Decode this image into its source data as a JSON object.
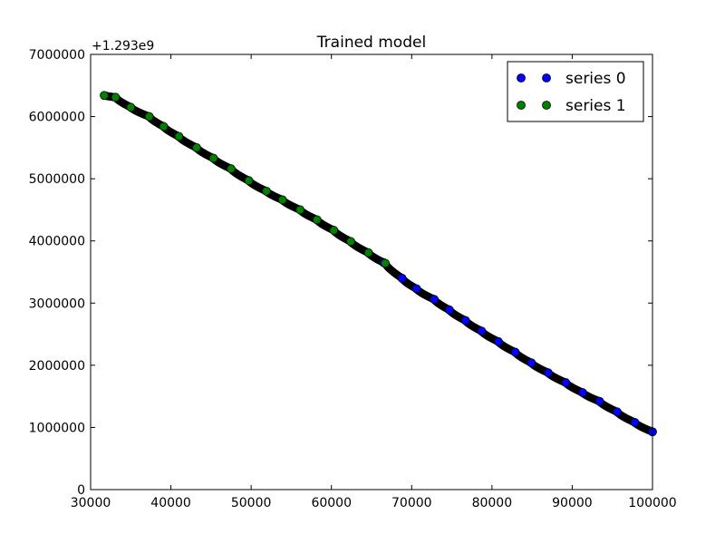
{
  "chart_data": {
    "type": "scatter",
    "title": "Trained model",
    "xlabel": "",
    "ylabel": "",
    "y_offset_label": "+1.293e9",
    "xlim": [
      30000,
      100000
    ],
    "ylim": [
      0,
      7000000
    ],
    "x_ticks": [
      30000,
      40000,
      50000,
      60000,
      70000,
      80000,
      90000,
      100000
    ],
    "x_tick_labels": [
      "30000",
      "40000",
      "50000",
      "60000",
      "70000",
      "80000",
      "90000",
      "100000"
    ],
    "y_ticks": [
      0,
      1000000,
      2000000,
      3000000,
      4000000,
      5000000,
      6000000,
      7000000
    ],
    "y_tick_labels": [
      "0",
      "1000000",
      "2000000",
      "3000000",
      "4000000",
      "5000000",
      "6000000",
      "7000000"
    ],
    "grid": false,
    "legend_position": "top-right",
    "series": [
      {
        "name": "series 0",
        "color": "#0000ff",
        "points": [
          [
            66500,
            3650000
          ],
          [
            68800,
            3400000
          ],
          [
            70600,
            3230000
          ],
          [
            72800,
            3060000
          ],
          [
            74700,
            2890000
          ],
          [
            76700,
            2720000
          ],
          [
            78700,
            2550000
          ],
          [
            80800,
            2380000
          ],
          [
            82900,
            2210000
          ],
          [
            84900,
            2040000
          ],
          [
            87000,
            1880000
          ],
          [
            89200,
            1720000
          ],
          [
            91300,
            1560000
          ],
          [
            93400,
            1420000
          ],
          [
            95600,
            1250000
          ],
          [
            97800,
            1080000
          ],
          [
            100000,
            930000
          ]
        ]
      },
      {
        "name": "series 1",
        "color": "#008000",
        "points": [
          [
            31700,
            6340000
          ],
          [
            33100,
            6310000
          ],
          [
            35000,
            6150000
          ],
          [
            37300,
            6000000
          ],
          [
            39100,
            5840000
          ],
          [
            41000,
            5680000
          ],
          [
            43200,
            5500000
          ],
          [
            45300,
            5330000
          ],
          [
            47500,
            5160000
          ],
          [
            49700,
            4970000
          ],
          [
            51900,
            4800000
          ],
          [
            53900,
            4660000
          ],
          [
            56100,
            4500000
          ],
          [
            58200,
            4340000
          ],
          [
            60300,
            4170000
          ],
          [
            62400,
            3990000
          ],
          [
            64600,
            3810000
          ],
          [
            66700,
            3640000
          ]
        ]
      }
    ],
    "trend_points": [
      [
        31700,
        6340000
      ],
      [
        33100,
        6310000
      ],
      [
        35000,
        6150000
      ],
      [
        37300,
        6000000
      ],
      [
        39100,
        5840000
      ],
      [
        41000,
        5680000
      ],
      [
        43200,
        5500000
      ],
      [
        45300,
        5330000
      ],
      [
        47500,
        5160000
      ],
      [
        49700,
        4970000
      ],
      [
        51900,
        4800000
      ],
      [
        53900,
        4660000
      ],
      [
        56100,
        4500000
      ],
      [
        58200,
        4340000
      ],
      [
        60300,
        4170000
      ],
      [
        62400,
        3990000
      ],
      [
        64600,
        3810000
      ],
      [
        66700,
        3640000
      ],
      [
        68800,
        3400000
      ],
      [
        70600,
        3230000
      ],
      [
        72800,
        3060000
      ],
      [
        74700,
        2890000
      ],
      [
        76700,
        2720000
      ],
      [
        78700,
        2550000
      ],
      [
        80800,
        2380000
      ],
      [
        82900,
        2210000
      ],
      [
        84900,
        2040000
      ],
      [
        87000,
        1880000
      ],
      [
        89200,
        1720000
      ],
      [
        91300,
        1560000
      ],
      [
        93400,
        1420000
      ],
      [
        95600,
        1250000
      ],
      [
        97800,
        1080000
      ],
      [
        100000,
        930000
      ]
    ],
    "trend_color": "#000000"
  }
}
